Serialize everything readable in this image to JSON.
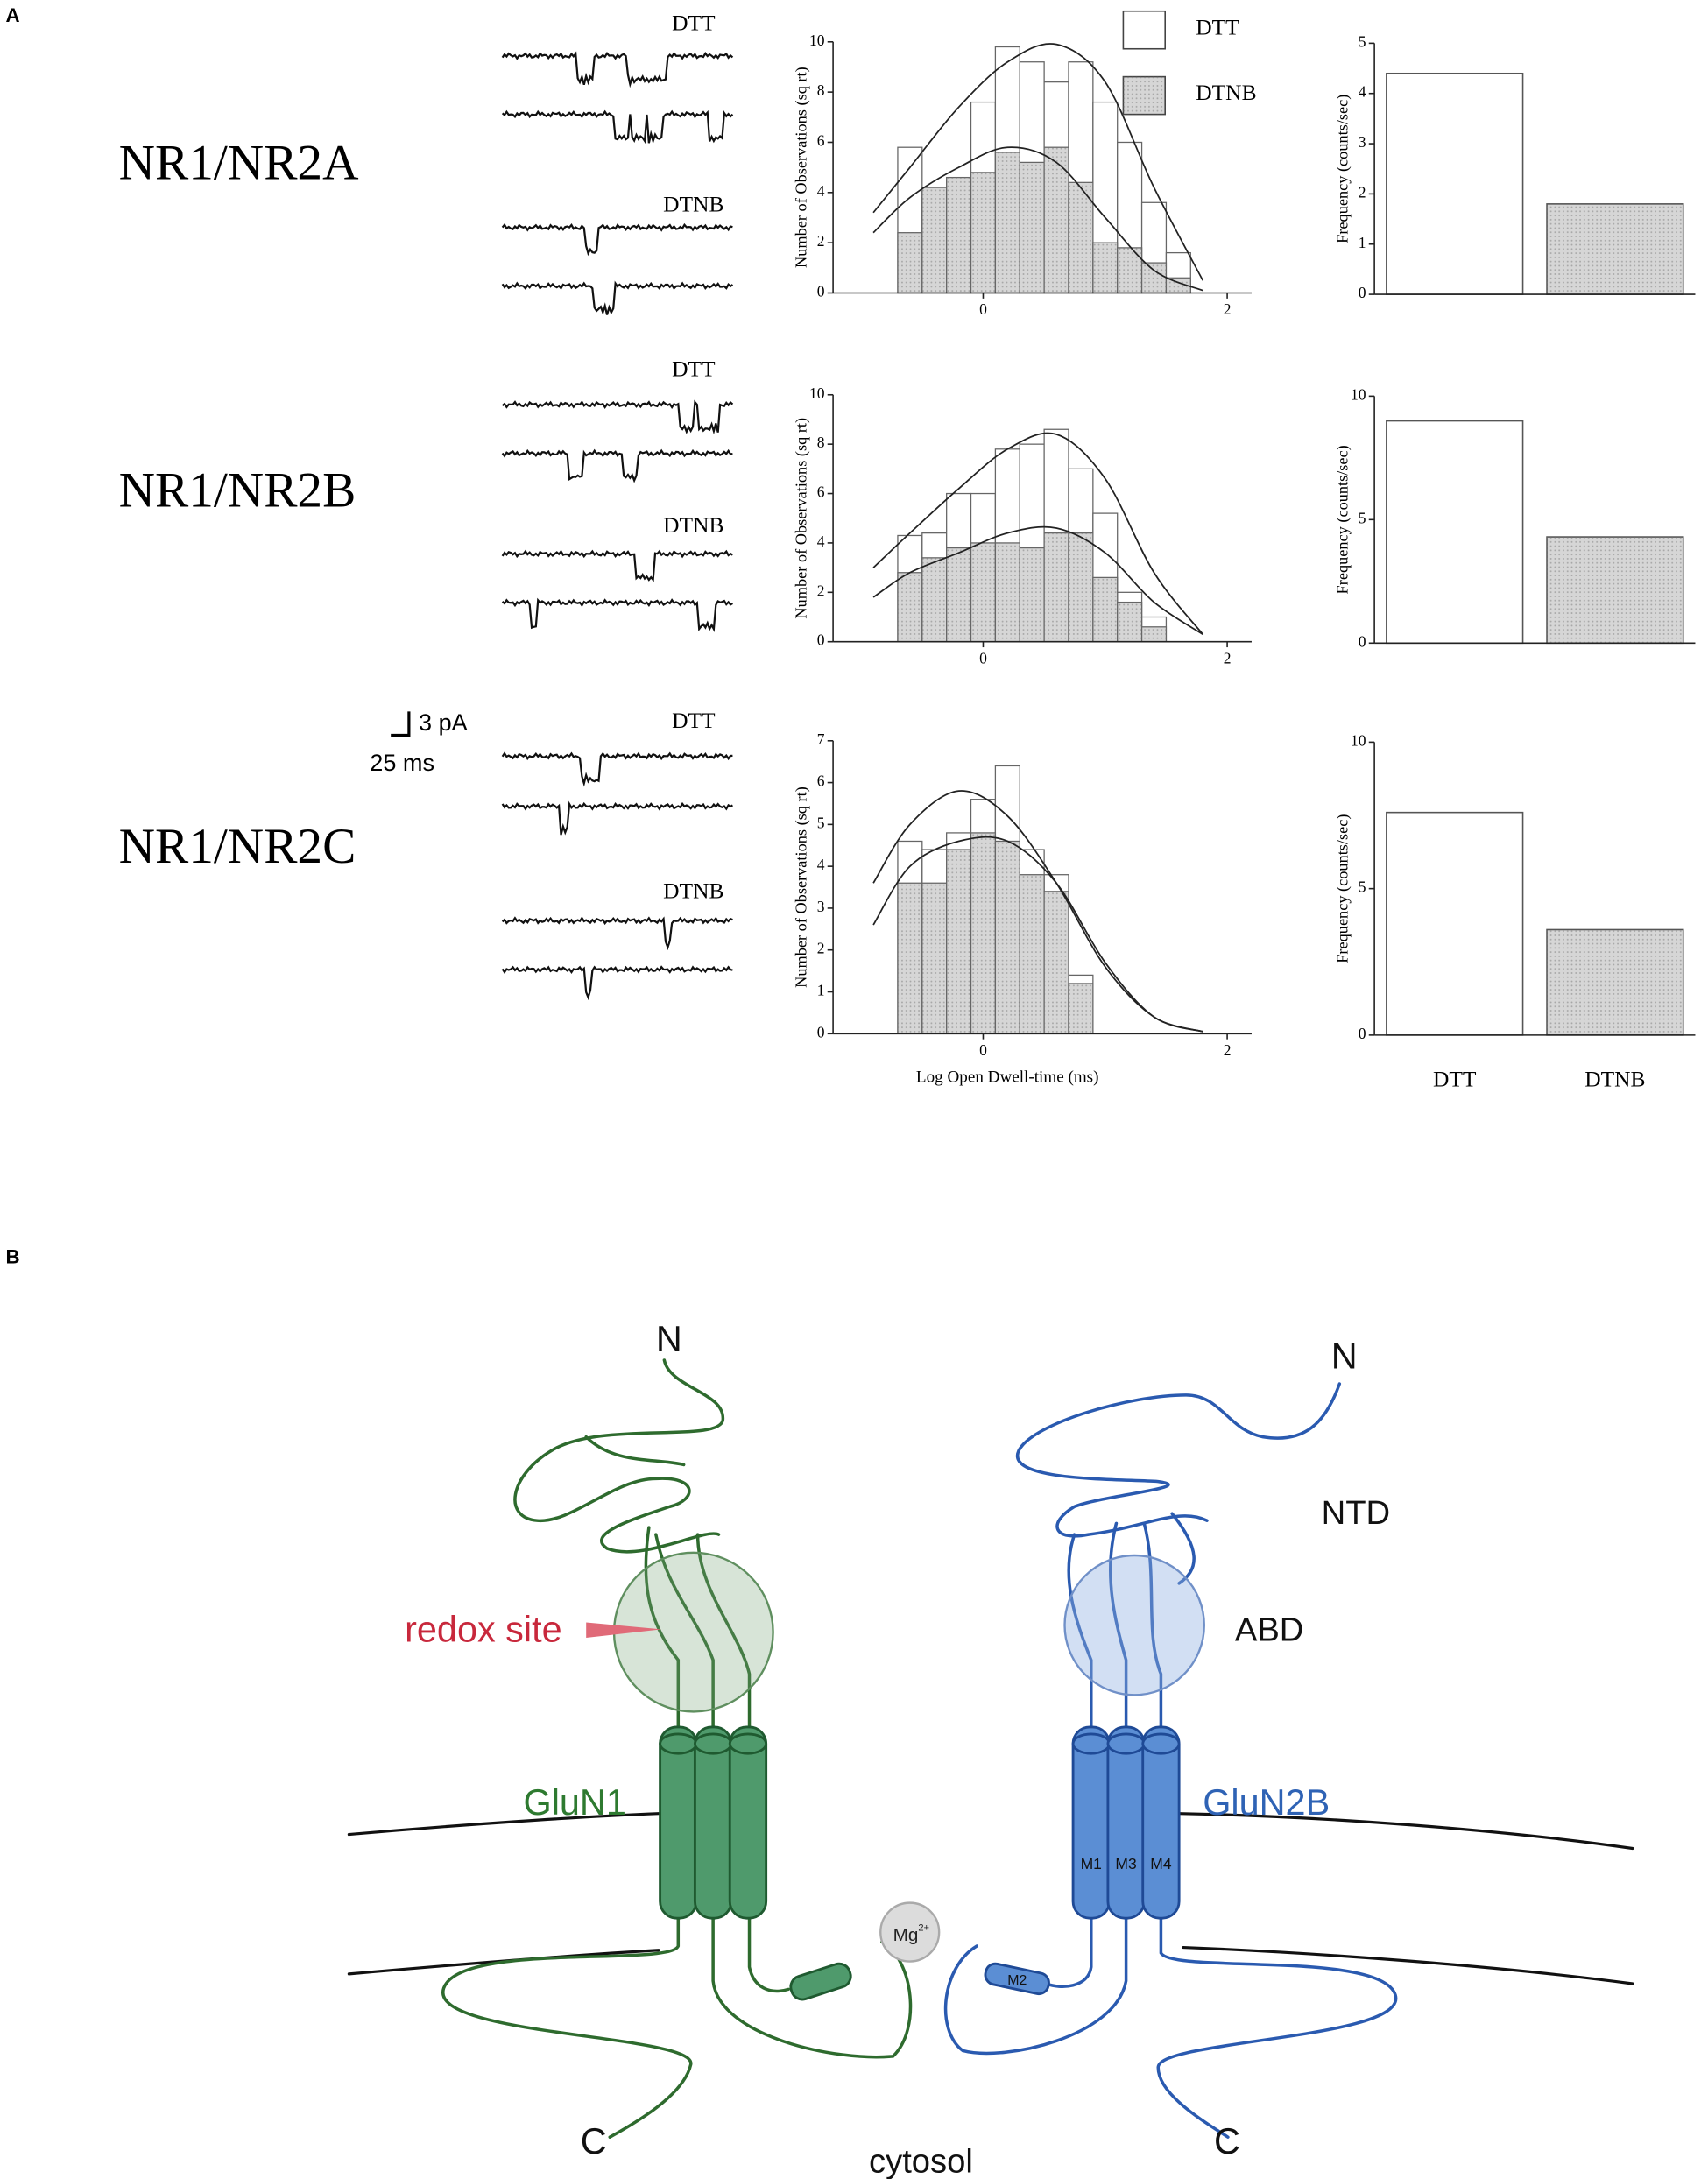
{
  "panel_labels": [
    "A",
    "B"
  ],
  "row_labels": [
    "NR1/NR2A",
    "NR1/NR2B",
    "NR1/NR2C"
  ],
  "scale_bar": {
    "current": "3 pA",
    "time": "25 ms"
  },
  "chart_data": [
    {
      "type": "histogram",
      "ylabel": "Number of Observations (sq rt)",
      "bins": [
        -0.7,
        -0.5,
        -0.3,
        -0.1,
        0.1,
        0.3,
        0.5,
        0.7,
        0.9,
        1.1,
        1.3,
        1.5,
        1.7
      ],
      "fit_x": [
        -0.9,
        -0.6,
        -0.2,
        0.2,
        0.6,
        1.0,
        1.4,
        1.8
      ],
      "series": [
        {
          "name": "DTT",
          "color": "#ffffff",
          "values": [
            5.8,
            3.8,
            4.5,
            7.6,
            9.8,
            9.2,
            8.4,
            9.2,
            7.6,
            6.0,
            3.6,
            1.6
          ],
          "fit": [
            3.2,
            5.0,
            7.4,
            9.2,
            9.9,
            8.4,
            4.2,
            0.5
          ]
        },
        {
          "name": "DTNB",
          "color": "#d6d6d6",
          "values": [
            2.4,
            4.2,
            4.6,
            4.8,
            5.6,
            5.2,
            5.8,
            4.4,
            2.0,
            1.8,
            1.2,
            0.6
          ],
          "fit": [
            2.4,
            3.8,
            5.0,
            5.8,
            5.2,
            3.0,
            0.9,
            0.1
          ]
        }
      ],
      "xlim": [
        -1.23,
        2.2
      ],
      "ylim": [
        0,
        10
      ],
      "xticks": [
        0,
        2
      ],
      "yticks": [
        0,
        2,
        4,
        6,
        8,
        10
      ],
      "legend": "top-right"
    },
    {
      "type": "bar",
      "ylabel": "Frequency (counts/sec)",
      "categories": [
        null,
        null
      ],
      "values": [
        4.4,
        1.8
      ],
      "colors": [
        "#ffffff",
        "#d6d6d6"
      ],
      "ylim": [
        0,
        5
      ],
      "yticks": [
        0,
        1,
        2,
        3,
        4,
        5
      ]
    },
    {
      "type": "histogram",
      "ylabel": "Number of Observations (sq rt)",
      "bins": [
        -0.7,
        -0.5,
        -0.3,
        -0.1,
        0.1,
        0.3,
        0.5,
        0.7,
        0.9,
        1.1,
        1.3,
        1.5
      ],
      "fit_x": [
        -0.9,
        -0.6,
        -0.2,
        0.2,
        0.6,
        1.0,
        1.4,
        1.8
      ],
      "series": [
        {
          "name": "DTT",
          "color": "#ffffff",
          "values": [
            4.3,
            4.4,
            6.0,
            6.0,
            7.8,
            8.0,
            8.6,
            7.0,
            5.2,
            2.0,
            1.0
          ],
          "fit": [
            3.0,
            4.4,
            6.2,
            7.8,
            8.4,
            6.6,
            2.8,
            0.3
          ]
        },
        {
          "name": "DTNB",
          "color": "#d6d6d6",
          "values": [
            2.8,
            3.4,
            3.8,
            4.0,
            4.0,
            3.8,
            4.4,
            4.4,
            2.6,
            1.6,
            0.6
          ],
          "fit": [
            1.8,
            2.8,
            3.6,
            4.4,
            4.6,
            3.6,
            1.6,
            0.3
          ]
        }
      ],
      "xlim": [
        -1.23,
        2.2
      ],
      "ylim": [
        0,
        10
      ],
      "xticks": [
        0,
        2
      ],
      "yticks": [
        0,
        2,
        4,
        6,
        8,
        10
      ]
    },
    {
      "type": "bar",
      "ylabel": "Frequency (counts/sec)",
      "categories": [
        null,
        null
      ],
      "values": [
        9.0,
        4.3
      ],
      "colors": [
        "#ffffff",
        "#d6d6d6"
      ],
      "ylim": [
        0,
        10
      ],
      "yticks": [
        0,
        5,
        10
      ]
    },
    {
      "type": "histogram",
      "ylabel": "Number of Observations (sq rt)",
      "xlabel": "Log Open Dwell-time (ms)",
      "bins": [
        -0.7,
        -0.5,
        -0.3,
        -0.1,
        0.1,
        0.3,
        0.5,
        0.7,
        0.9
      ],
      "fit_x": [
        -0.9,
        -0.6,
        -0.2,
        0.2,
        0.6,
        1.0,
        1.4,
        1.8
      ],
      "series": [
        {
          "name": "DTT",
          "color": "#ffffff",
          "values": [
            4.6,
            4.4,
            4.8,
            5.6,
            6.4,
            4.4,
            3.8,
            1.4
          ],
          "fit": [
            3.6,
            5.0,
            5.8,
            5.2,
            3.6,
            1.6,
            0.4,
            0.05
          ]
        },
        {
          "name": "DTNB",
          "color": "#d6d6d6",
          "values": [
            3.6,
            3.6,
            4.4,
            4.8,
            4.6,
            3.8,
            3.4,
            1.2
          ],
          "fit": [
            2.6,
            4.0,
            4.6,
            4.6,
            3.6,
            1.7,
            0.4,
            0.05
          ]
        }
      ],
      "xlim": [
        -1.23,
        2.2
      ],
      "ylim": [
        0,
        7
      ],
      "xticks": [
        0,
        2
      ],
      "yticks": [
        0,
        1,
        2,
        3,
        4,
        5,
        6,
        7
      ]
    },
    {
      "type": "bar",
      "ylabel": "Frequency (counts/sec)",
      "categories": [
        "DTT",
        "DTNB"
      ],
      "values": [
        7.6,
        3.6
      ],
      "colors": [
        "#ffffff",
        "#d6d6d6"
      ],
      "ylim": [
        0,
        10
      ],
      "yticks": [
        0,
        5,
        10
      ]
    }
  ],
  "diagram": {
    "glun1": {
      "label": "GluN1",
      "n_terminus": "N",
      "c_terminus": "C",
      "site": "redox site"
    },
    "glun2b": {
      "label": "GluN2B",
      "n_terminus": "N",
      "c_terminus": "C",
      "helices": [
        "M1",
        "M3",
        "M4"
      ],
      "pore_loop": "M2"
    },
    "domains": [
      "NTD",
      "ABD"
    ],
    "ion": {
      "symbol": "Mg",
      "charge": "2+"
    },
    "compartment": "cytosol"
  }
}
